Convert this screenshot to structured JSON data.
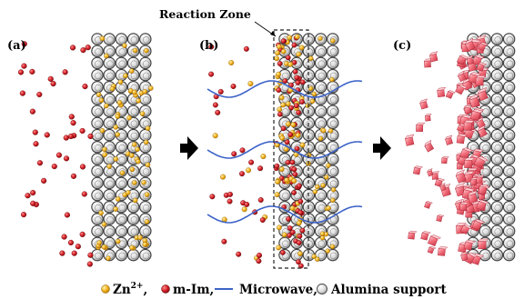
{
  "figure": {
    "panel_labels": [
      "(a)",
      "(b)",
      "(c)"
    ],
    "reaction_zone_label": "Reaction Zone",
    "arrow_glyph": "arrow-right-icon"
  },
  "legend": {
    "zn_label": "Zn",
    "zn_sup": "2+",
    "zn_sep": ",",
    "mim_label": "m-Im,",
    "microwave_label": "Microwave,",
    "alumina_label": "Alumina support"
  },
  "colors": {
    "zn": "#f2b21c",
    "mim": "#d41f26",
    "microwave": "#3d63c9",
    "crystal": "#f06a77",
    "support_fill": "#e9e9e9",
    "support_stroke": "#444444"
  }
}
